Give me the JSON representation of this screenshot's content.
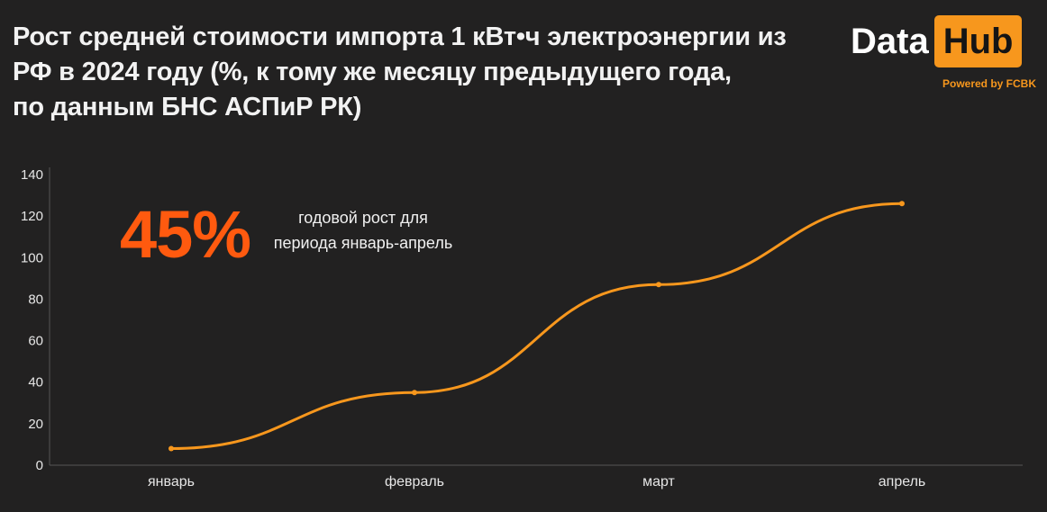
{
  "header": {
    "title_lines": [
      "Рост средней стоимости импорта 1 кВт•ч электроэнергии из",
      "РФ в 2024 году (%, к тому же месяцу предыдущего года,",
      "по данным БНС АСПиР РК)"
    ]
  },
  "logo": {
    "data_text": "Data",
    "hub_text": "Hub",
    "powered_text": "Powered by FCBK"
  },
  "callout": {
    "value": "45%",
    "note": "годовой рост для периода январь-апрель"
  },
  "colors": {
    "background": "#222121",
    "line": "#f7971d",
    "accent": "#ff5a0f",
    "axis": "#555555"
  },
  "chart_data": {
    "type": "line",
    "categories": [
      "январь",
      "февраль",
      "март",
      "апрель"
    ],
    "values": [
      8,
      35,
      87,
      126
    ],
    "title": "",
    "xlabel": "",
    "ylabel": "",
    "ylim": [
      0,
      140
    ],
    "yticks": [
      0,
      20,
      40,
      60,
      80,
      100,
      120,
      140
    ],
    "smooth": true,
    "grid": false
  }
}
